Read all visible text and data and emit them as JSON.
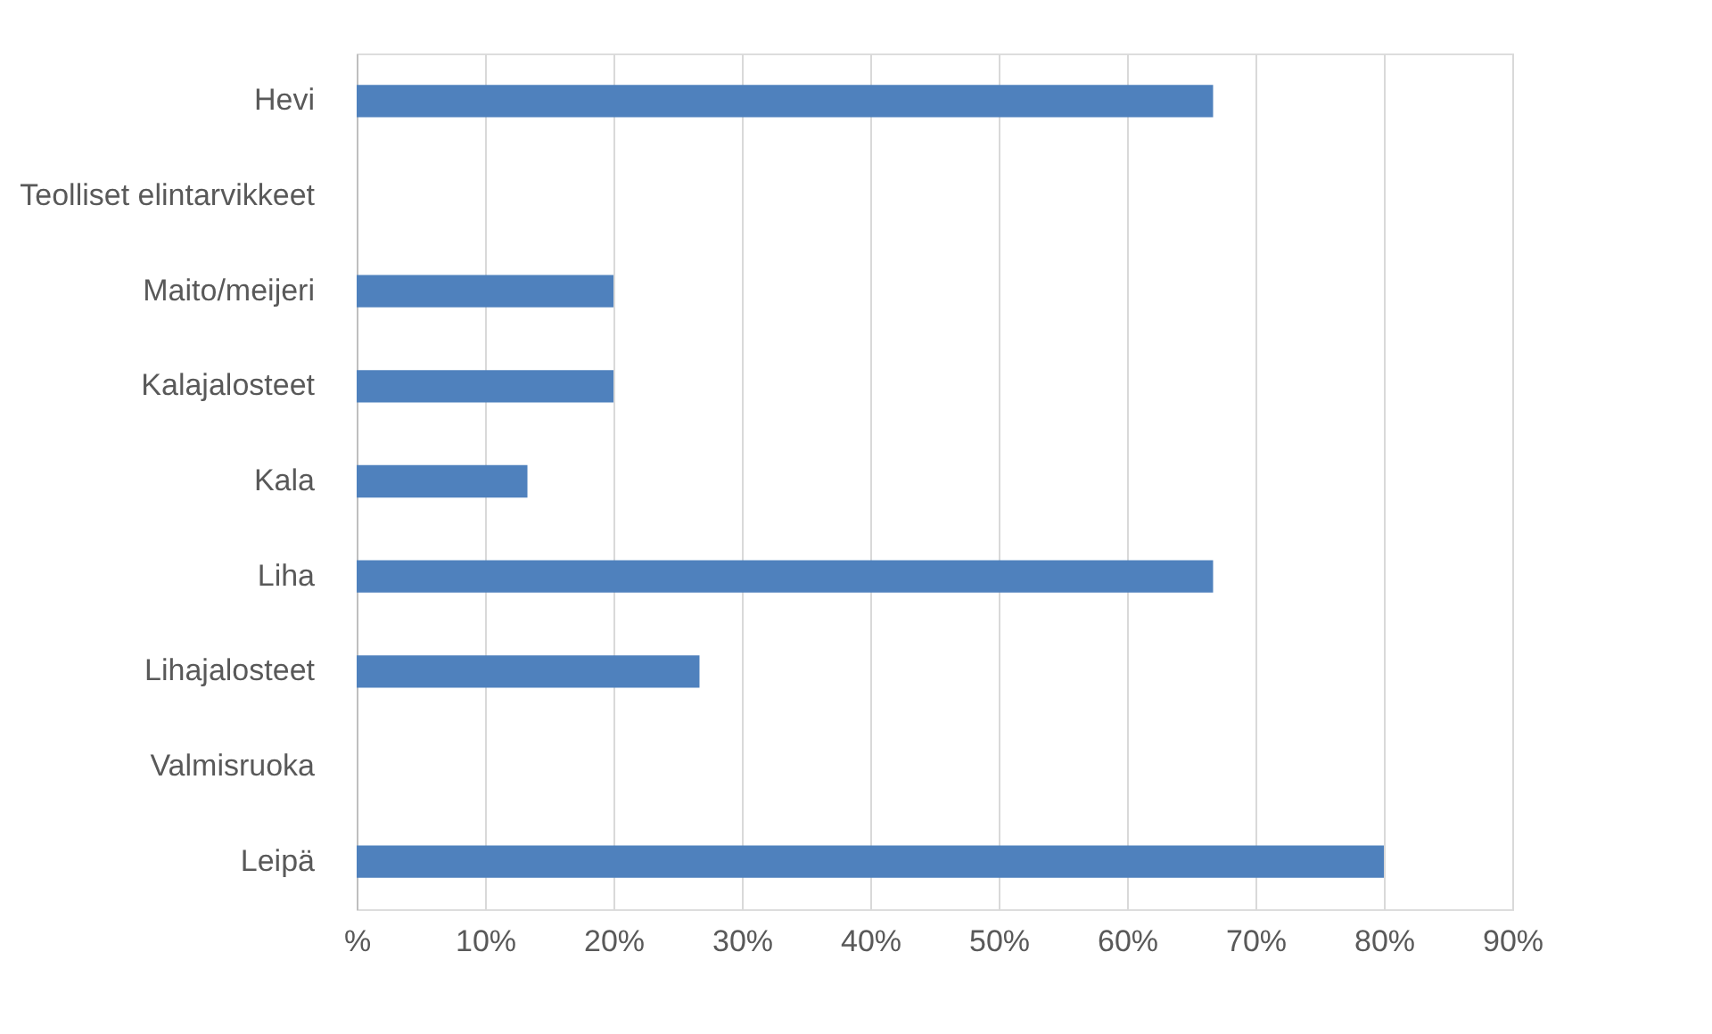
{
  "chart_data": {
    "type": "bar",
    "orientation": "horizontal",
    "categories": [
      "Hevi",
      "Teolliset elintarvikkeet",
      "Maito/meijeri",
      "Kalajalosteet",
      "Kala",
      "Liha",
      "Lihajalosteet",
      "Valmisruoka",
      "Leipä"
    ],
    "values": [
      66.7,
      0,
      20,
      20,
      13.3,
      66.7,
      26.7,
      0,
      80
    ],
    "color": "#4f81bd",
    "xlim": [
      0,
      90
    ],
    "xticks": [
      {
        "value": 0,
        "label": "%"
      },
      {
        "value": 10,
        "label": "10%"
      },
      {
        "value": 20,
        "label": "20%"
      },
      {
        "value": 30,
        "label": "30%"
      },
      {
        "value": 40,
        "label": "40%"
      },
      {
        "value": 50,
        "label": "50%"
      },
      {
        "value": 60,
        "label": "60%"
      },
      {
        "value": 70,
        "label": "70%"
      },
      {
        "value": 80,
        "label": "80%"
      },
      {
        "value": 90,
        "label": "90%"
      }
    ],
    "grid": "x"
  }
}
